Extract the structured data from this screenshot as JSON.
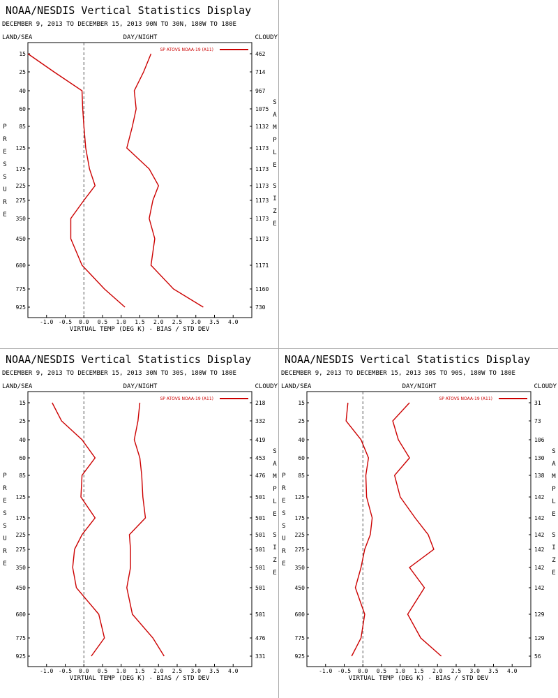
{
  "chart_data": [
    {
      "type": "line",
      "title": "NOAA/NESDIS Vertical Statistics Display",
      "subtitle": "DECEMBER 9, 2013 TO DECEMBER 15, 2013 90N TO 30N, 180W TO 180E",
      "header_left": "LAND/SEA",
      "header_center": "DAY/NIGHT",
      "header_right": "CLOUDY",
      "ylabel": "PRESSURE",
      "right_label": "SAMPLE SIZE",
      "xlabel": "VIRTUAL TEMP (DEG K) - BIAS / STD DEV",
      "xlim": [
        -1.5,
        4.5
      ],
      "x_ticks": [
        "-1.0",
        "-0.5",
        "0.0",
        "0.5",
        "1.0",
        "1.5",
        "2.0",
        "2.5",
        "3.0",
        "3.5",
        "4.0"
      ],
      "pressure_levels": [
        "15",
        "25",
        "40",
        "60",
        "85",
        "125",
        "175",
        "225",
        "275",
        "350",
        "450",
        "600",
        "775",
        "925"
      ],
      "sample_size": [
        "462",
        "714",
        "967",
        "1075",
        "1132",
        "1173",
        "1173",
        "1173",
        "1173",
        "1173",
        "1173",
        "1171",
        "1160",
        "730"
      ],
      "color": "#cc0000",
      "series": [
        {
          "name": "SP ATOVS NOAA-19 (A11)",
          "values": [
            -1.5,
            -0.8,
            -0.05,
            -0.03,
            0.0,
            0.05,
            0.15,
            0.3,
            0.0,
            -0.35,
            -0.35,
            -0.05,
            0.55,
            1.1
          ]
        },
        {
          "values": [
            1.8,
            1.6,
            1.35,
            1.4,
            1.3,
            1.15,
            1.75,
            2.0,
            1.85,
            1.75,
            1.9,
            1.8,
            2.4,
            3.2
          ]
        }
      ]
    },
    {
      "type": "line",
      "title": "NOAA/NESDIS Vertical Statistics Display",
      "subtitle": "DECEMBER 9, 2013 TO DECEMBER 15, 2013 30N TO 30S, 180W TO 180E",
      "header_left": "LAND/SEA",
      "header_center": "DAY/NIGHT",
      "header_right": "CLOUDY",
      "ylabel": "PRESSURE",
      "right_label": "SAMPLE SIZE",
      "xlabel": "VIRTUAL TEMP (DEG K) - BIAS / STD DEV",
      "xlim": [
        -1.5,
        4.5
      ],
      "x_ticks": [
        "-1.0",
        "-0.5",
        "0.0",
        "0.5",
        "1.0",
        "1.5",
        "2.0",
        "2.5",
        "3.0",
        "3.5",
        "4.0"
      ],
      "pressure_levels": [
        "15",
        "25",
        "40",
        "60",
        "85",
        "125",
        "175",
        "225",
        "275",
        "350",
        "450",
        "600",
        "775",
        "925"
      ],
      "sample_size": [
        "218",
        "332",
        "419",
        "453",
        "476",
        "501",
        "501",
        "501",
        "501",
        "501",
        "501",
        "501",
        "476",
        "331"
      ],
      "color": "#cc0000",
      "series": [
        {
          "name": "SP ATOVS NOAA-19 (A11)",
          "values": [
            -0.85,
            -0.6,
            -0.05,
            0.3,
            -0.05,
            -0.08,
            0.3,
            -0.05,
            -0.25,
            -0.3,
            -0.2,
            0.4,
            0.55,
            0.2
          ]
        },
        {
          "values": [
            1.5,
            1.45,
            1.35,
            1.5,
            1.55,
            1.58,
            1.65,
            1.22,
            1.25,
            1.25,
            1.15,
            1.3,
            1.85,
            2.15
          ]
        }
      ]
    },
    {
      "type": "line",
      "title": "NOAA/NESDIS Vertical Statistics Display",
      "subtitle": "DECEMBER 9, 2013 TO DECEMBER 15, 2013 30S TO 90S, 180W TO 180E",
      "header_left": "LAND/SEA",
      "header_center": "DAY/NIGHT",
      "header_right": "CLOUDY",
      "ylabel": "PRESSURE",
      "right_label": "SAMPLE SIZE",
      "xlabel": "VIRTUAL TEMP (DEG K) - BIAS / STD DEV",
      "xlim": [
        -1.5,
        4.5
      ],
      "x_ticks": [
        "-1.0",
        "-0.5",
        "0.0",
        "0.5",
        "1.0",
        "1.5",
        "2.0",
        "2.5",
        "3.0",
        "3.5",
        "4.0"
      ],
      "pressure_levels": [
        "15",
        "25",
        "40",
        "60",
        "85",
        "125",
        "175",
        "225",
        "275",
        "350",
        "450",
        "600",
        "775",
        "925"
      ],
      "sample_size": [
        "31",
        "73",
        "106",
        "130",
        "138",
        "142",
        "142",
        "142",
        "142",
        "142",
        "142",
        "129",
        "129",
        "56"
      ],
      "color": "#cc0000",
      "series": [
        {
          "name": "SP ATOVS NOAA-19 (A11)",
          "values": [
            -0.4,
            -0.45,
            -0.05,
            0.15,
            0.08,
            0.1,
            0.25,
            0.2,
            0.05,
            -0.05,
            -0.2,
            0.05,
            -0.05,
            -0.3
          ]
        },
        {
          "values": [
            1.25,
            0.8,
            0.95,
            1.25,
            0.85,
            1.0,
            1.4,
            1.75,
            1.9,
            1.25,
            1.65,
            1.2,
            1.55,
            2.1
          ]
        }
      ]
    }
  ]
}
